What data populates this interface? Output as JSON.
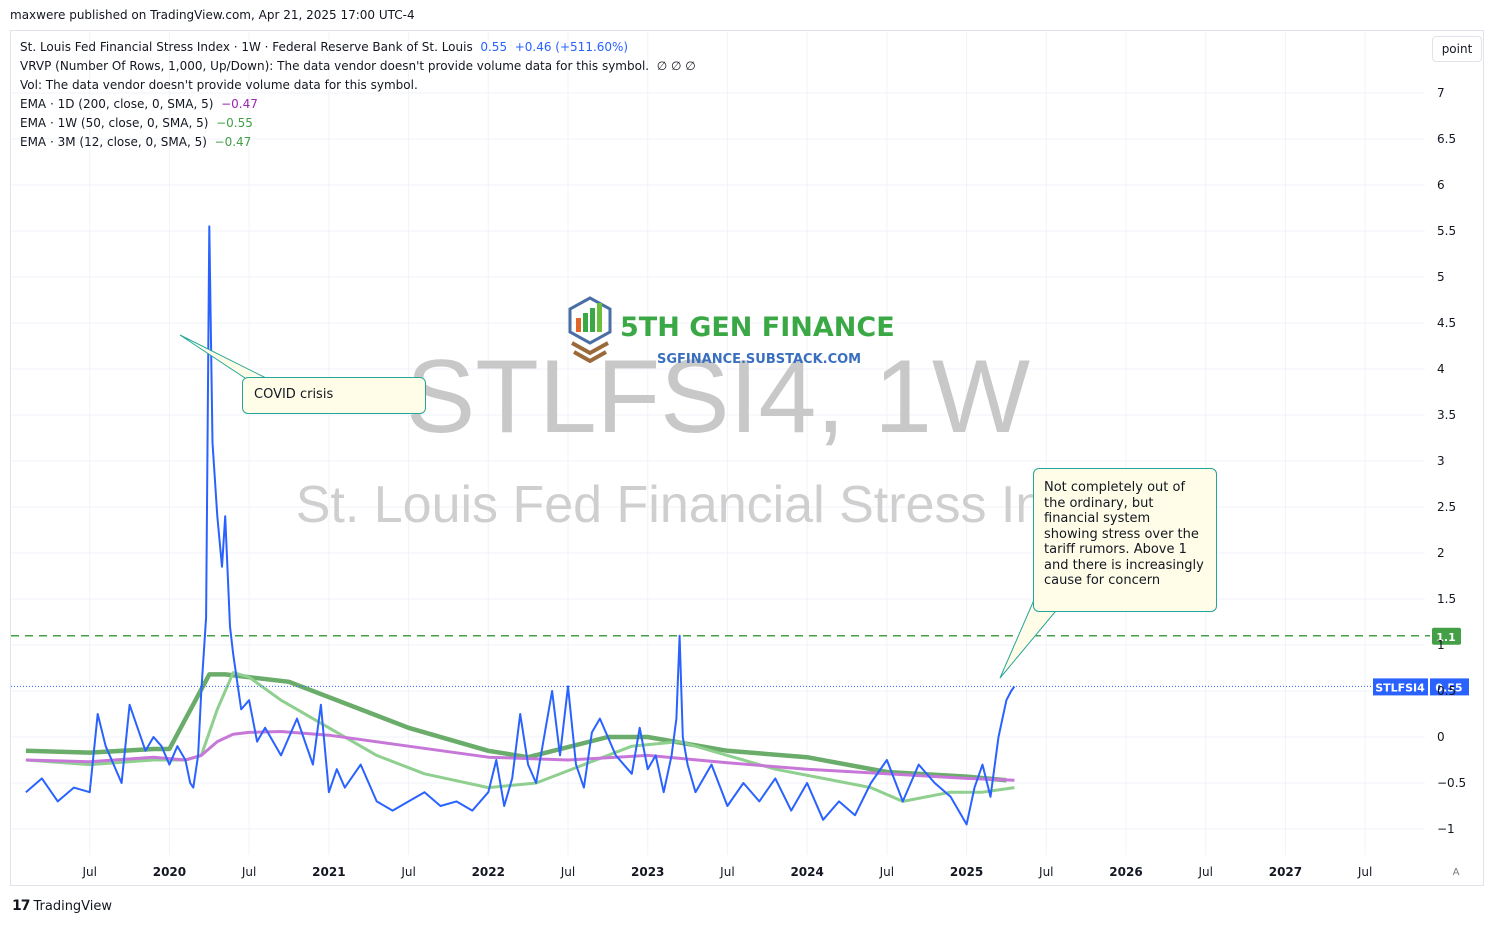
{
  "header": {
    "published": "maxwere published on TradingView.com, Apr 21, 2025 17:00 UTC-4"
  },
  "legend": {
    "main_name": "St. Louis Fed Financial Stress Index · 1W · Federal Reserve Bank of St. Louis",
    "main_value": "0.55",
    "main_change": "+0.46 (+511.60%)",
    "vrvp": "VRVP (Number Of Rows, 1,000, Up/Down): The data vendor doesn't provide volume data for this symbol.",
    "vrvp_values": "∅  ∅  ∅",
    "vol": "Vol: The data vendor doesn't provide volume data for this symbol.",
    "ema1_label": "EMA · 1D (200, close, 0, SMA, 5)",
    "ema1_value": "−0.47",
    "ema2_label": "EMA · 1W (50, close, 0, SMA, 5)",
    "ema2_value": "−0.55",
    "ema3_label": "EMA · 3M (12, close, 0, SMA, 5)",
    "ema3_value": "−0.47"
  },
  "controls": {
    "point_label": "point",
    "auto_label": "A"
  },
  "footer": {
    "brand": "TradingView",
    "brand_mark": "17"
  },
  "watermark": {
    "symbol": "STLFSI4, 1W",
    "description": "St. Louis Fed Financial Stress In",
    "logo_text": "5TH GEN FINANCE",
    "logo_sub": "SGFINANCE.SUBSTACK.COM"
  },
  "annotations": {
    "covid": "COVID crisis",
    "tariff": "Not completely out of the ordinary, but financial system showing stress over the tariff rumors.  Above 1 and there is increasingly cause for concern"
  },
  "colors": {
    "main_line": "#2962ff",
    "ema_1d": "#c777d8",
    "ema_1w": "#8fcf8f",
    "ema_3m": "#6aac6a",
    "hline": "#43a047"
  },
  "chart_data": {
    "type": "line",
    "y_ticks": [
      "7",
      "6.5",
      "6",
      "5.5",
      "5",
      "4.5",
      "4",
      "3.5",
      "3",
      "2.5",
      "2",
      "1.5",
      "1",
      "0.5",
      "0",
      "−0.5",
      "−1"
    ],
    "ylim": [
      -1.2,
      7.5
    ],
    "x_ticks": [
      "Jul",
      "2020",
      "Jul",
      "2021",
      "Jul",
      "2022",
      "Jul",
      "2023",
      "Jul",
      "2024",
      "Jul",
      "2025",
      "Jul",
      "2026",
      "Jul",
      "2027",
      "Jul"
    ],
    "horizontal_line": {
      "value": 1.1,
      "label": "1.1"
    },
    "last_value_label": {
      "symbol": "STLFSI4",
      "value": "0.55"
    },
    "series": [
      {
        "name": "STLFSI4",
        "x": [
          2019.1,
          2019.2,
          2019.3,
          2019.4,
          2019.5,
          2019.55,
          2019.6,
          2019.7,
          2019.75,
          2019.85,
          2019.9,
          2019.95,
          2020.0,
          2020.05,
          2020.1,
          2020.13,
          2020.15,
          2020.18,
          2020.2,
          2020.23,
          2020.25,
          2020.27,
          2020.3,
          2020.33,
          2020.35,
          2020.38,
          2020.4,
          2020.45,
          2020.5,
          2020.55,
          2020.6,
          2020.7,
          2020.8,
          2020.9,
          2020.95,
          2021.0,
          2021.05,
          2021.1,
          2021.2,
          2021.3,
          2021.4,
          2021.5,
          2021.6,
          2021.7,
          2021.8,
          2021.9,
          2022.0,
          2022.05,
          2022.1,
          2022.15,
          2022.2,
          2022.25,
          2022.3,
          2022.35,
          2022.4,
          2022.45,
          2022.5,
          2022.55,
          2022.6,
          2022.65,
          2022.7,
          2022.8,
          2022.9,
          2022.95,
          2023.0,
          2023.05,
          2023.1,
          2023.15,
          2023.18,
          2023.2,
          2023.22,
          2023.25,
          2023.3,
          2023.4,
          2023.5,
          2023.6,
          2023.7,
          2023.8,
          2023.9,
          2024.0,
          2024.1,
          2024.2,
          2024.3,
          2024.4,
          2024.5,
          2024.6,
          2024.7,
          2024.8,
          2024.9,
          2025.0,
          2025.05,
          2025.1,
          2025.15,
          2025.2,
          2025.25,
          2025.28,
          2025.3
        ],
        "values": [
          -0.6,
          -0.45,
          -0.7,
          -0.55,
          -0.6,
          0.25,
          -0.1,
          -0.5,
          0.35,
          -0.15,
          0.0,
          -0.1,
          -0.3,
          -0.1,
          -0.25,
          -0.5,
          -0.55,
          -0.2,
          0.5,
          1.3,
          5.55,
          3.2,
          2.4,
          1.85,
          2.4,
          1.2,
          0.9,
          0.3,
          0.4,
          -0.05,
          0.1,
          -0.2,
          0.2,
          -0.3,
          0.35,
          -0.6,
          -0.35,
          -0.55,
          -0.3,
          -0.7,
          -0.8,
          -0.7,
          -0.6,
          -0.75,
          -0.7,
          -0.8,
          -0.6,
          -0.25,
          -0.75,
          -0.45,
          0.25,
          -0.3,
          -0.5,
          0.0,
          0.5,
          -0.2,
          0.55,
          -0.3,
          -0.55,
          0.05,
          0.2,
          -0.2,
          -0.4,
          0.1,
          -0.35,
          -0.2,
          -0.6,
          -0.2,
          0.2,
          1.1,
          0.0,
          -0.3,
          -0.6,
          -0.3,
          -0.75,
          -0.5,
          -0.7,
          -0.45,
          -0.8,
          -0.5,
          -0.9,
          -0.7,
          -0.85,
          -0.5,
          -0.25,
          -0.7,
          -0.3,
          -0.5,
          -0.65,
          -0.95,
          -0.55,
          -0.3,
          -0.65,
          0.0,
          0.4,
          0.5,
          0.55
        ]
      },
      {
        "name": "EMA · 1D (200, close, 0, SMA, 5)",
        "x": [
          2019.1,
          2019.5,
          2019.9,
          2020.1,
          2020.2,
          2020.3,
          2020.4,
          2020.5,
          2020.7,
          2021.0,
          2021.5,
          2022.0,
          2022.5,
          2023.0,
          2023.5,
          2024.0,
          2024.5,
          2025.0,
          2025.3
        ],
        "values": [
          -0.25,
          -0.27,
          -0.22,
          -0.25,
          -0.2,
          -0.05,
          0.03,
          0.05,
          0.06,
          0.02,
          -0.1,
          -0.22,
          -0.25,
          -0.2,
          -0.28,
          -0.35,
          -0.4,
          -0.45,
          -0.47
        ]
      },
      {
        "name": "EMA · 1W (50, close, 0, SMA, 5)",
        "x": [
          2019.1,
          2019.5,
          2019.9,
          2020.1,
          2020.2,
          2020.3,
          2020.4,
          2020.5,
          2020.7,
          2021.0,
          2021.3,
          2021.6,
          2022.0,
          2022.3,
          2022.6,
          2022.9,
          2023.2,
          2023.5,
          2023.8,
          2024.1,
          2024.4,
          2024.6,
          2024.9,
          2025.1,
          2025.3
        ],
        "values": [
          -0.25,
          -0.3,
          -0.25,
          -0.25,
          -0.2,
          0.3,
          0.7,
          0.65,
          0.4,
          0.1,
          -0.2,
          -0.4,
          -0.55,
          -0.5,
          -0.3,
          -0.1,
          -0.05,
          -0.2,
          -0.35,
          -0.45,
          -0.55,
          -0.7,
          -0.6,
          -0.6,
          -0.55
        ]
      },
      {
        "name": "EMA · 3M (12, close, 0, SMA, 5)",
        "x": [
          2019.1,
          2019.5,
          2019.9,
          2020.0,
          2020.25,
          2020.35,
          2020.75,
          2021.5,
          2022.0,
          2022.25,
          2022.75,
          2023.0,
          2023.5,
          2024.0,
          2024.5,
          2025.0,
          2025.25
        ],
        "values": [
          -0.15,
          -0.17,
          -0.13,
          -0.13,
          0.68,
          0.68,
          0.6,
          0.1,
          -0.15,
          -0.22,
          0.0,
          0.0,
          -0.15,
          -0.22,
          -0.38,
          -0.43,
          -0.47
        ]
      }
    ]
  }
}
